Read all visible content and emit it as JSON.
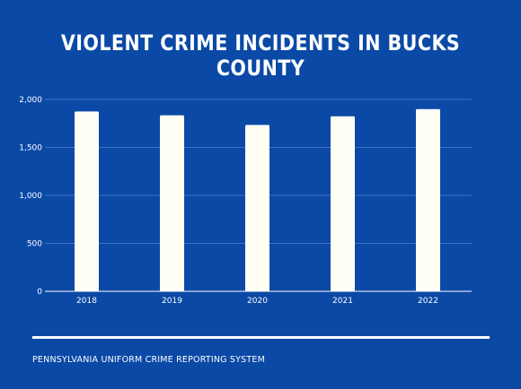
{
  "title": "VIOLENT CRIME INCIDENTS IN BUCKS COUNTY",
  "source": "PENNSYLVANIA UNIFORM CRIME REPORTING SYSTEM",
  "colors": {
    "background": "#0a49a6",
    "bar": "#fffff5",
    "gridline": "#3f74c4",
    "axis": "#ffffff",
    "text": "#ffffff"
  },
  "chart_data": {
    "type": "bar",
    "title": "VIOLENT CRIME INCIDENTS IN BUCKS COUNTY",
    "categories": [
      "2018",
      "2019",
      "2020",
      "2021",
      "2022"
    ],
    "values": [
      1875,
      1835,
      1735,
      1825,
      1900
    ],
    "ylim": [
      0,
      2000
    ],
    "yticks": [
      0,
      500,
      1000,
      1500,
      2000
    ],
    "ytick_labels": [
      "0",
      "500",
      "1,000",
      "1,500",
      "2,000"
    ],
    "xlabel": "",
    "ylabel": "",
    "grid": true
  }
}
